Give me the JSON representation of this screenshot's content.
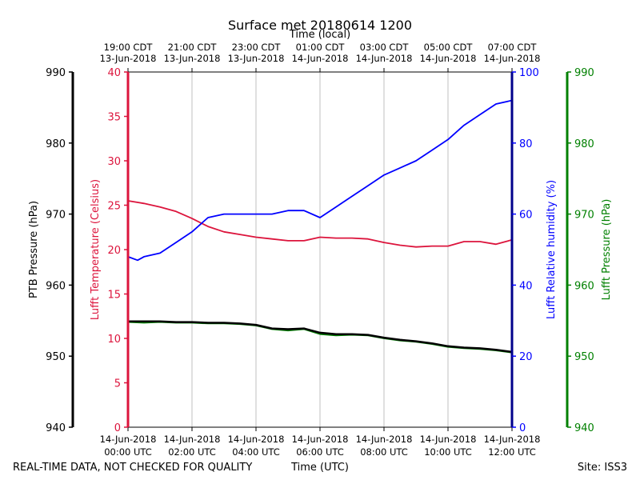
{
  "chart_data": {
    "type": "line",
    "title": "Surface met 20180614 1200",
    "top_xlabel": "Time (local)",
    "xlabel": "Time (UTC)",
    "footer_left": "REAL-TIME DATA, NOT CHECKED FOR QUALITY",
    "footer_right": "Site: ISS3",
    "x_range_hours": [
      0,
      12
    ],
    "x_ticks_utc": [
      {
        "h": 0,
        "date": "14-Jun-2018",
        "time": "00:00 UTC"
      },
      {
        "h": 2,
        "date": "14-Jun-2018",
        "time": "02:00 UTC"
      },
      {
        "h": 4,
        "date": "14-Jun-2018",
        "time": "04:00 UTC"
      },
      {
        "h": 6,
        "date": "14-Jun-2018",
        "time": "06:00 UTC"
      },
      {
        "h": 8,
        "date": "14-Jun-2018",
        "time": "08:00 UTC"
      },
      {
        "h": 10,
        "date": "14-Jun-2018",
        "time": "10:00 UTC"
      },
      {
        "h": 12,
        "date": "14-Jun-2018",
        "time": "12:00 UTC"
      }
    ],
    "x_ticks_local": [
      {
        "h": 0,
        "time": "19:00 CDT",
        "date": "13-Jun-2018"
      },
      {
        "h": 2,
        "time": "21:00 CDT",
        "date": "13-Jun-2018"
      },
      {
        "h": 4,
        "time": "23:00 CDT",
        "date": "13-Jun-2018"
      },
      {
        "h": 6,
        "time": "01:00 CDT",
        "date": "14-Jun-2018"
      },
      {
        "h": 8,
        "time": "03:00 CDT",
        "date": "14-Jun-2018"
      },
      {
        "h": 10,
        "time": "05:00 CDT",
        "date": "14-Jun-2018"
      },
      {
        "h": 12,
        "time": "07:00 CDT",
        "date": "14-Jun-2018"
      }
    ],
    "axes": {
      "ptb_pressure": {
        "label": "PTB Pressure (hPa)",
        "range": [
          940,
          990
        ],
        "ticks": [
          940,
          950,
          960,
          970,
          980,
          990
        ],
        "color": "#000000"
      },
      "temperature": {
        "label": "Lufft Temperature (Celsius)",
        "range": [
          0,
          40
        ],
        "ticks": [
          0,
          5,
          10,
          15,
          20,
          25,
          30,
          35,
          40
        ],
        "color": "#dc143c"
      },
      "humidity": {
        "label": "Lufft Relative humidity (%)",
        "range": [
          0,
          100
        ],
        "ticks": [
          0,
          20,
          40,
          60,
          80,
          100
        ],
        "color": "#0000ff"
      },
      "lufft_pressure": {
        "label": "Lufft Pressure (hPa)",
        "range": [
          940,
          990
        ],
        "ticks": [
          940,
          950,
          960,
          970,
          980,
          990
        ],
        "color": "#008000"
      }
    },
    "series": [
      {
        "name": "Lufft Temperature",
        "axis": "temperature",
        "color": "#dc143c",
        "x": [
          0,
          0.5,
          1,
          1.5,
          2,
          2.5,
          3,
          3.5,
          4,
          4.5,
          5,
          5.5,
          6,
          6.5,
          7,
          7.5,
          8,
          8.5,
          9,
          9.5,
          10,
          10.5,
          11,
          11.5,
          12
        ],
        "y": [
          25.5,
          25.2,
          24.8,
          24.3,
          23.5,
          22.6,
          22.0,
          21.7,
          21.4,
          21.2,
          21.0,
          21.0,
          21.4,
          21.3,
          21.3,
          21.2,
          20.8,
          20.5,
          20.3,
          20.4,
          20.4,
          20.9,
          20.9,
          20.6,
          21.1
        ]
      },
      {
        "name": "Lufft Relative humidity",
        "axis": "humidity",
        "color": "#0000ff",
        "x": [
          0,
          0.3,
          0.5,
          1,
          1.5,
          2,
          2.5,
          3,
          3.5,
          4,
          4.5,
          5,
          5.5,
          6,
          6.5,
          7,
          7.5,
          8,
          8.5,
          9,
          9.5,
          10,
          10.5,
          11,
          11.5,
          12
        ],
        "y": [
          48,
          47,
          48,
          49,
          52,
          55,
          59,
          60,
          60,
          60,
          60,
          61,
          61,
          59,
          62,
          65,
          68,
          71,
          73,
          75,
          78,
          81,
          85,
          88,
          91,
          92
        ]
      },
      {
        "name": "PTB Pressure",
        "axis": "ptb_pressure",
        "color": "#000000",
        "x": [
          0,
          0.5,
          1,
          1.5,
          2,
          2.5,
          3,
          3.5,
          4,
          4.5,
          5,
          5.5,
          6,
          6.5,
          7,
          7.5,
          8,
          8.5,
          9,
          9.5,
          10,
          10.5,
          11,
          11.5,
          12
        ],
        "y": [
          954.9,
          954.9,
          954.9,
          954.8,
          954.8,
          954.7,
          954.7,
          954.6,
          954.4,
          953.9,
          953.8,
          953.9,
          953.3,
          953.1,
          953.1,
          953.0,
          952.6,
          952.3,
          952.1,
          951.8,
          951.4,
          951.2,
          951.1,
          950.9,
          950.6
        ]
      },
      {
        "name": "Lufft Pressure",
        "axis": "lufft_pressure",
        "color": "#008000",
        "x": [
          0,
          0.5,
          1,
          1.5,
          2,
          2.5,
          3,
          3.5,
          4,
          4.5,
          5,
          5.5,
          6,
          6.5,
          7,
          7.5,
          8,
          8.5,
          9,
          9.5,
          10,
          10.5,
          11,
          11.5,
          12
        ],
        "y": [
          954.8,
          954.7,
          954.8,
          954.7,
          954.7,
          954.6,
          954.6,
          954.5,
          954.3,
          953.8,
          953.6,
          953.8,
          953.1,
          952.9,
          953.0,
          952.9,
          952.5,
          952.2,
          952.0,
          951.7,
          951.3,
          951.1,
          951.0,
          950.8,
          950.5
        ]
      }
    ]
  }
}
